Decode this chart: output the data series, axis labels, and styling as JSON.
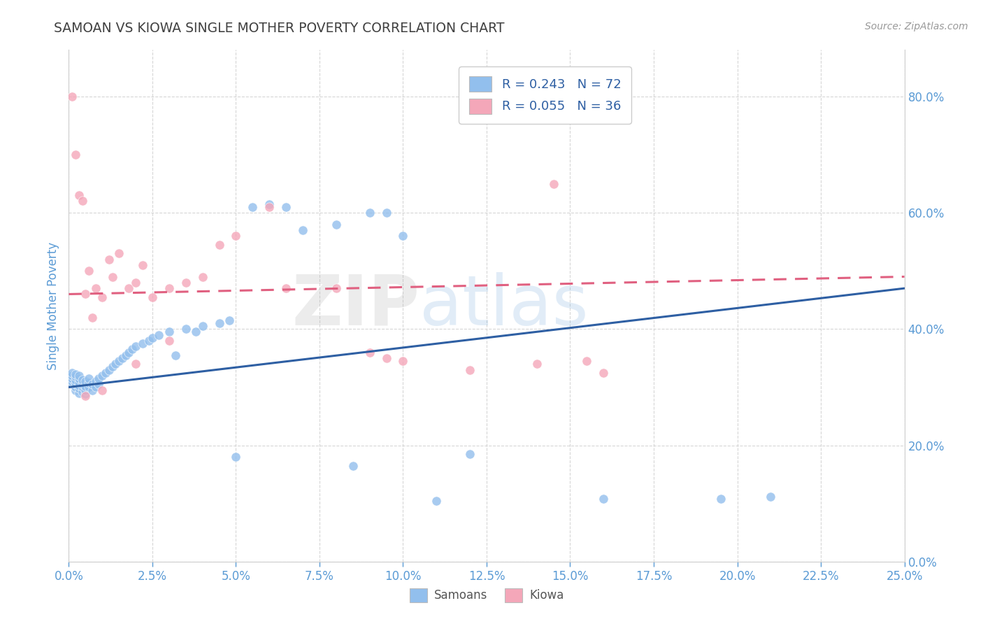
{
  "title": "SAMOAN VS KIOWA SINGLE MOTHER POVERTY CORRELATION CHART",
  "source_text": "Source: ZipAtlas.com",
  "ylabel": "Single Mother Poverty",
  "xlim": [
    0.0,
    0.25
  ],
  "ylim": [
    0.0,
    0.88
  ],
  "xticks": [
    0.0,
    0.025,
    0.05,
    0.075,
    0.1,
    0.125,
    0.15,
    0.175,
    0.2,
    0.225,
    0.25
  ],
  "yticks": [
    0.0,
    0.2,
    0.4,
    0.6,
    0.8
  ],
  "blue_R": 0.243,
  "blue_N": 72,
  "pink_R": 0.055,
  "pink_N": 36,
  "blue_color": "#92BFED",
  "pink_color": "#F4A7B9",
  "blue_line_color": "#2E5FA3",
  "pink_line_color": "#E06080",
  "background_color": "#FFFFFF",
  "title_color": "#404040",
  "axis_label_color": "#5B9BD5",
  "tick_label_color": "#5B9BD5",
  "blue_scatter_x": [
    0.001,
    0.001,
    0.001,
    0.001,
    0.001,
    0.002,
    0.002,
    0.002,
    0.002,
    0.002,
    0.002,
    0.002,
    0.003,
    0.003,
    0.003,
    0.003,
    0.003,
    0.003,
    0.004,
    0.004,
    0.004,
    0.004,
    0.005,
    0.005,
    0.005,
    0.005,
    0.006,
    0.006,
    0.006,
    0.007,
    0.007,
    0.008,
    0.008,
    0.009,
    0.009,
    0.01,
    0.011,
    0.012,
    0.013,
    0.014,
    0.015,
    0.016,
    0.017,
    0.018,
    0.019,
    0.02,
    0.022,
    0.024,
    0.025,
    0.027,
    0.03,
    0.032,
    0.035,
    0.038,
    0.04,
    0.045,
    0.048,
    0.05,
    0.055,
    0.06,
    0.065,
    0.07,
    0.08,
    0.085,
    0.09,
    0.095,
    0.1,
    0.11,
    0.12,
    0.16,
    0.195,
    0.21
  ],
  "blue_scatter_y": [
    0.305,
    0.31,
    0.315,
    0.32,
    0.325,
    0.295,
    0.3,
    0.305,
    0.308,
    0.312,
    0.318,
    0.322,
    0.29,
    0.298,
    0.303,
    0.308,
    0.315,
    0.32,
    0.292,
    0.3,
    0.305,
    0.312,
    0.288,
    0.295,
    0.302,
    0.31,
    0.3,
    0.308,
    0.315,
    0.295,
    0.305,
    0.3,
    0.31,
    0.305,
    0.315,
    0.32,
    0.325,
    0.33,
    0.335,
    0.34,
    0.345,
    0.35,
    0.355,
    0.36,
    0.365,
    0.37,
    0.375,
    0.38,
    0.385,
    0.39,
    0.395,
    0.355,
    0.4,
    0.395,
    0.405,
    0.41,
    0.415,
    0.18,
    0.61,
    0.615,
    0.61,
    0.57,
    0.58,
    0.165,
    0.6,
    0.6,
    0.56,
    0.105,
    0.185,
    0.108,
    0.108,
    0.112
  ],
  "pink_scatter_x": [
    0.001,
    0.002,
    0.003,
    0.004,
    0.005,
    0.006,
    0.007,
    0.008,
    0.01,
    0.012,
    0.013,
    0.015,
    0.018,
    0.02,
    0.022,
    0.025,
    0.03,
    0.035,
    0.04,
    0.045,
    0.05,
    0.06,
    0.065,
    0.08,
    0.09,
    0.095,
    0.1,
    0.12,
    0.14,
    0.145,
    0.155,
    0.16,
    0.005,
    0.01,
    0.02,
    0.03
  ],
  "pink_scatter_y": [
    0.8,
    0.7,
    0.63,
    0.62,
    0.46,
    0.5,
    0.42,
    0.47,
    0.455,
    0.52,
    0.49,
    0.53,
    0.47,
    0.48,
    0.51,
    0.455,
    0.47,
    0.48,
    0.49,
    0.545,
    0.56,
    0.61,
    0.47,
    0.47,
    0.36,
    0.35,
    0.345,
    0.33,
    0.34,
    0.65,
    0.345,
    0.325,
    0.285,
    0.295,
    0.34,
    0.38
  ],
  "blue_trend_x": [
    0.0,
    0.25
  ],
  "blue_trend_y": [
    0.3,
    0.47
  ],
  "pink_trend_x": [
    0.0,
    0.25
  ],
  "pink_trend_y": [
    0.46,
    0.49
  ]
}
